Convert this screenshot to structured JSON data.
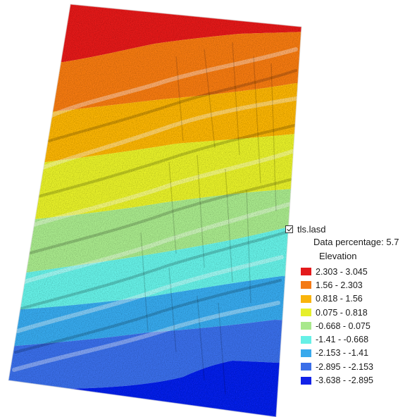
{
  "legend": {
    "layer_checked": true,
    "layer_name": "tls.lasd",
    "data_percentage": "Data percentage: 5.7",
    "field_name": "Elevation",
    "classes": [
      {
        "label": "2.303 - 3.045",
        "color": "#e31a1c"
      },
      {
        "label": "1.56 - 2.303",
        "color": "#f47a16"
      },
      {
        "label": "0.818 - 1.56",
        "color": "#f9b40c"
      },
      {
        "label": "0.075 - 0.818",
        "color": "#e6ef2a"
      },
      {
        "label": "-0.668 - 0.075",
        "color": "#a8e88c"
      },
      {
        "label": "-1.41 - -0.668",
        "color": "#66f0e6"
      },
      {
        "label": "-2.153 - -1.41",
        "color": "#39a9ec"
      },
      {
        "label": "-2.895 - -2.153",
        "color": "#3a6ee8"
      },
      {
        "label": "-3.638 - -2.895",
        "color": "#1122e8"
      }
    ]
  }
}
